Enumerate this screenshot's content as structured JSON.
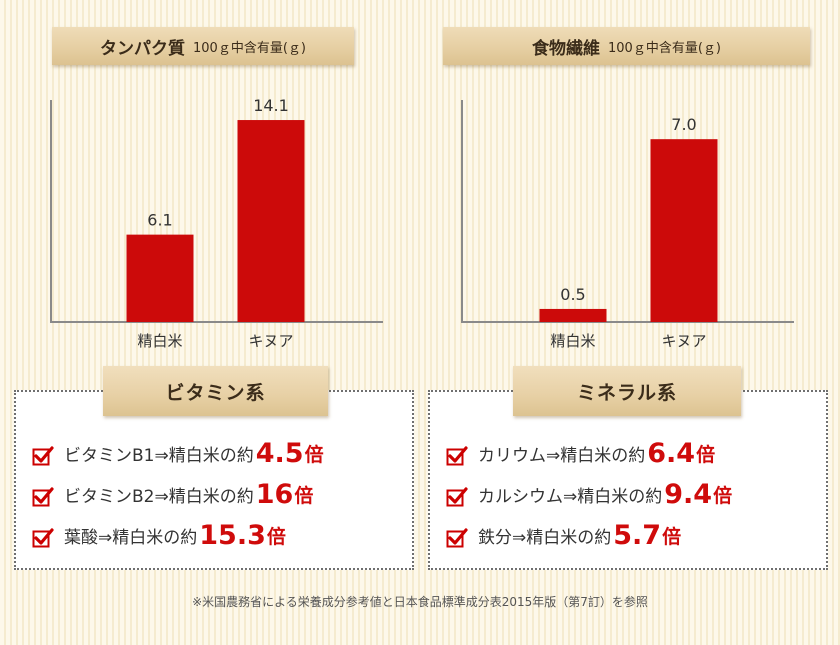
{
  "charts": {
    "protein": {
      "title": "タンパク質",
      "unit": "100ｇ中含有量(ｇ)"
    },
    "fiber": {
      "title": "食物繊維",
      "unit": "100ｇ中含有量(ｇ)"
    }
  },
  "chart_data": [
    {
      "type": "bar",
      "title": "タンパク質 100ｇ中含有量(ｇ)",
      "categories": [
        "精白米",
        "キヌア"
      ],
      "values": [
        6.1,
        14.1
      ],
      "data_labels": [
        "6.1",
        "14.1"
      ],
      "ylim": [
        0,
        15.5
      ],
      "grid": false,
      "color": "#cc0a0a"
    },
    {
      "type": "bar",
      "title": "食物繊維 100ｇ中含有量(ｇ)",
      "categories": [
        "精白米",
        "キヌア"
      ],
      "values": [
        0.5,
        7.0
      ],
      "data_labels": [
        "0.5",
        "7.0"
      ],
      "ylim": [
        0,
        8.5
      ],
      "grid": false,
      "color": "#cc0a0a"
    }
  ],
  "vitamins": {
    "title": "ビタミン系",
    "items": [
      {
        "text": "ビタミンB1⇒精白米の約",
        "num": "4.5",
        "suffix": "倍"
      },
      {
        "text": "ビタミンB2⇒精白米の約",
        "num": "16",
        "suffix": "倍"
      },
      {
        "text": "葉酸⇒精白米の約",
        "num": "15.3",
        "suffix": "倍"
      }
    ]
  },
  "minerals": {
    "title": "ミネラル系",
    "items": [
      {
        "text": "カリウム⇒精白米の約",
        "num": "6.4",
        "suffix": "倍"
      },
      {
        "text": "カルシウム⇒精白米の約",
        "num": "9.4",
        "suffix": "倍"
      },
      {
        "text": "鉄分⇒精白米の約",
        "num": "5.7",
        "suffix": "倍"
      }
    ]
  },
  "footnote": "※米国農務省による栄養成分参考値と日本食品標準成分表2015年版（第7訂）を参照",
  "colors": {
    "bar": "#cc0a0a",
    "accent": "#cf0b0b",
    "check": "#cc0000"
  },
  "icons": {
    "check": "checkbox-check-icon"
  }
}
